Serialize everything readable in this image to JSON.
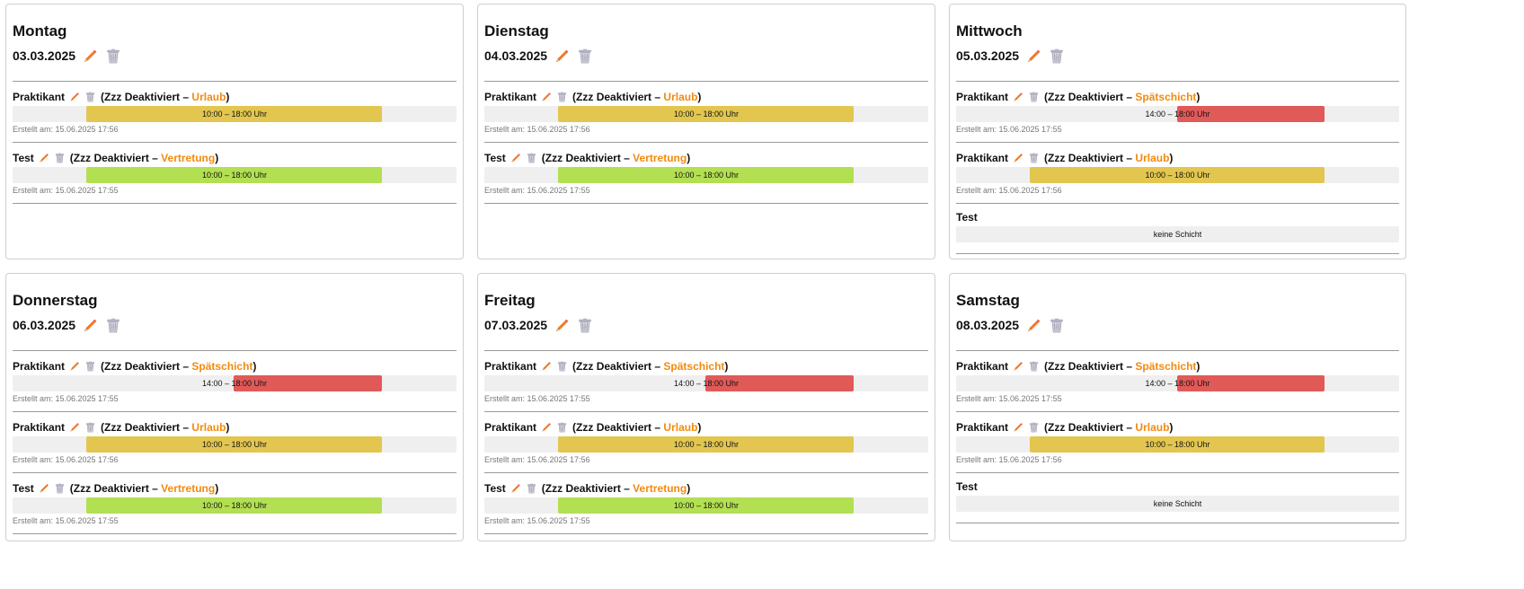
{
  "colors": {
    "urlaub": "#e2c64f",
    "vertretung": "#b3df52",
    "spaetschicht": "#e05a58",
    "accent_text": "#f28a0f",
    "track": "#efefef"
  },
  "icons": {
    "edit": "pencil-icon",
    "delete": "trash-icon"
  },
  "days": [
    {
      "day": "Montag",
      "date": "03.03.2025",
      "entries": [
        {
          "name": "Praktikant",
          "prefix": "(Zzz Deaktiviert – ",
          "type": "Urlaub",
          "suffix": ")",
          "shift": "urlaub",
          "time": "10:00 – 18:00 Uhr",
          "start": 0.166,
          "end": 0.831,
          "created": "Erstellt am: 15.06.2025 17:56"
        },
        {
          "name": "Test",
          "prefix": "(Zzz Deaktiviert – ",
          "type": "Vertretung",
          "suffix": ")",
          "shift": "vertretung",
          "time": "10:00 – 18:00 Uhr",
          "start": 0.166,
          "end": 0.831,
          "created": "Erstellt am: 15.06.2025 17:55"
        }
      ]
    },
    {
      "day": "Dienstag",
      "date": "04.03.2025",
      "entries": [
        {
          "name": "Praktikant",
          "prefix": "(Zzz Deaktiviert – ",
          "type": "Urlaub",
          "suffix": ")",
          "shift": "urlaub",
          "time": "10:00 – 18:00 Uhr",
          "start": 0.166,
          "end": 0.831,
          "created": "Erstellt am: 15.06.2025 17:56"
        },
        {
          "name": "Test",
          "prefix": "(Zzz Deaktiviert – ",
          "type": "Vertretung",
          "suffix": ")",
          "shift": "vertretung",
          "time": "10:00 – 18:00 Uhr",
          "start": 0.166,
          "end": 0.831,
          "created": "Erstellt am: 15.06.2025 17:55"
        }
      ]
    },
    {
      "day": "Mittwoch",
      "date": "05.03.2025",
      "entries": [
        {
          "name": "Praktikant",
          "prefix": "(Zzz Deaktiviert – ",
          "type": "Spätschicht",
          "suffix": ")",
          "shift": "spaetschicht",
          "time": "14:00 – 18:00 Uhr",
          "start": 0.498,
          "end": 0.831,
          "created": "Erstellt am: 15.06.2025 17:55"
        },
        {
          "name": "Praktikant",
          "prefix": "(Zzz Deaktiviert – ",
          "type": "Urlaub",
          "suffix": ")",
          "shift": "urlaub",
          "time": "10:00 – 18:00 Uhr",
          "start": 0.166,
          "end": 0.831,
          "created": "Erstellt am: 15.06.2025 17:56"
        },
        {
          "name": "Test",
          "noshift": "keine Schicht"
        }
      ]
    },
    {
      "day": "Donnerstag",
      "date": "06.03.2025",
      "entries": [
        {
          "name": "Praktikant",
          "prefix": "(Zzz Deaktiviert – ",
          "type": "Spätschicht",
          "suffix": ")",
          "shift": "spaetschicht",
          "time": "14:00 – 18:00 Uhr",
          "start": 0.498,
          "end": 0.831,
          "created": "Erstellt am: 15.06.2025 17:55"
        },
        {
          "name": "Praktikant",
          "prefix": "(Zzz Deaktiviert – ",
          "type": "Urlaub",
          "suffix": ")",
          "shift": "urlaub",
          "time": "10:00 – 18:00 Uhr",
          "start": 0.166,
          "end": 0.831,
          "created": "Erstellt am: 15.06.2025 17:56"
        },
        {
          "name": "Test",
          "prefix": "(Zzz Deaktiviert – ",
          "type": "Vertretung",
          "suffix": ")",
          "shift": "vertretung",
          "time": "10:00 – 18:00 Uhr",
          "start": 0.166,
          "end": 0.831,
          "created": "Erstellt am: 15.06.2025 17:55"
        }
      ]
    },
    {
      "day": "Freitag",
      "date": "07.03.2025",
      "entries": [
        {
          "name": "Praktikant",
          "prefix": "(Zzz Deaktiviert – ",
          "type": "Spätschicht",
          "suffix": ")",
          "shift": "spaetschicht",
          "time": "14:00 – 18:00 Uhr",
          "start": 0.498,
          "end": 0.831,
          "created": "Erstellt am: 15.06.2025 17:55"
        },
        {
          "name": "Praktikant",
          "prefix": "(Zzz Deaktiviert – ",
          "type": "Urlaub",
          "suffix": ")",
          "shift": "urlaub",
          "time": "10:00 – 18:00 Uhr",
          "start": 0.166,
          "end": 0.831,
          "created": "Erstellt am: 15.06.2025 17:56"
        },
        {
          "name": "Test",
          "prefix": "(Zzz Deaktiviert – ",
          "type": "Vertretung",
          "suffix": ")",
          "shift": "vertretung",
          "time": "10:00 – 18:00 Uhr",
          "start": 0.166,
          "end": 0.831,
          "created": "Erstellt am: 15.06.2025 17:55"
        }
      ]
    },
    {
      "day": "Samstag",
      "date": "08.03.2025",
      "entries": [
        {
          "name": "Praktikant",
          "prefix": "(Zzz Deaktiviert – ",
          "type": "Spätschicht",
          "suffix": ")",
          "shift": "spaetschicht",
          "time": "14:00 – 18:00 Uhr",
          "start": 0.498,
          "end": 0.831,
          "created": "Erstellt am: 15.06.2025 17:55"
        },
        {
          "name": "Praktikant",
          "prefix": "(Zzz Deaktiviert – ",
          "type": "Urlaub",
          "suffix": ")",
          "shift": "urlaub",
          "time": "10:00 – 18:00 Uhr",
          "start": 0.166,
          "end": 0.831,
          "created": "Erstellt am: 15.06.2025 17:56"
        },
        {
          "name": "Test",
          "noshift": "keine Schicht"
        }
      ]
    }
  ]
}
